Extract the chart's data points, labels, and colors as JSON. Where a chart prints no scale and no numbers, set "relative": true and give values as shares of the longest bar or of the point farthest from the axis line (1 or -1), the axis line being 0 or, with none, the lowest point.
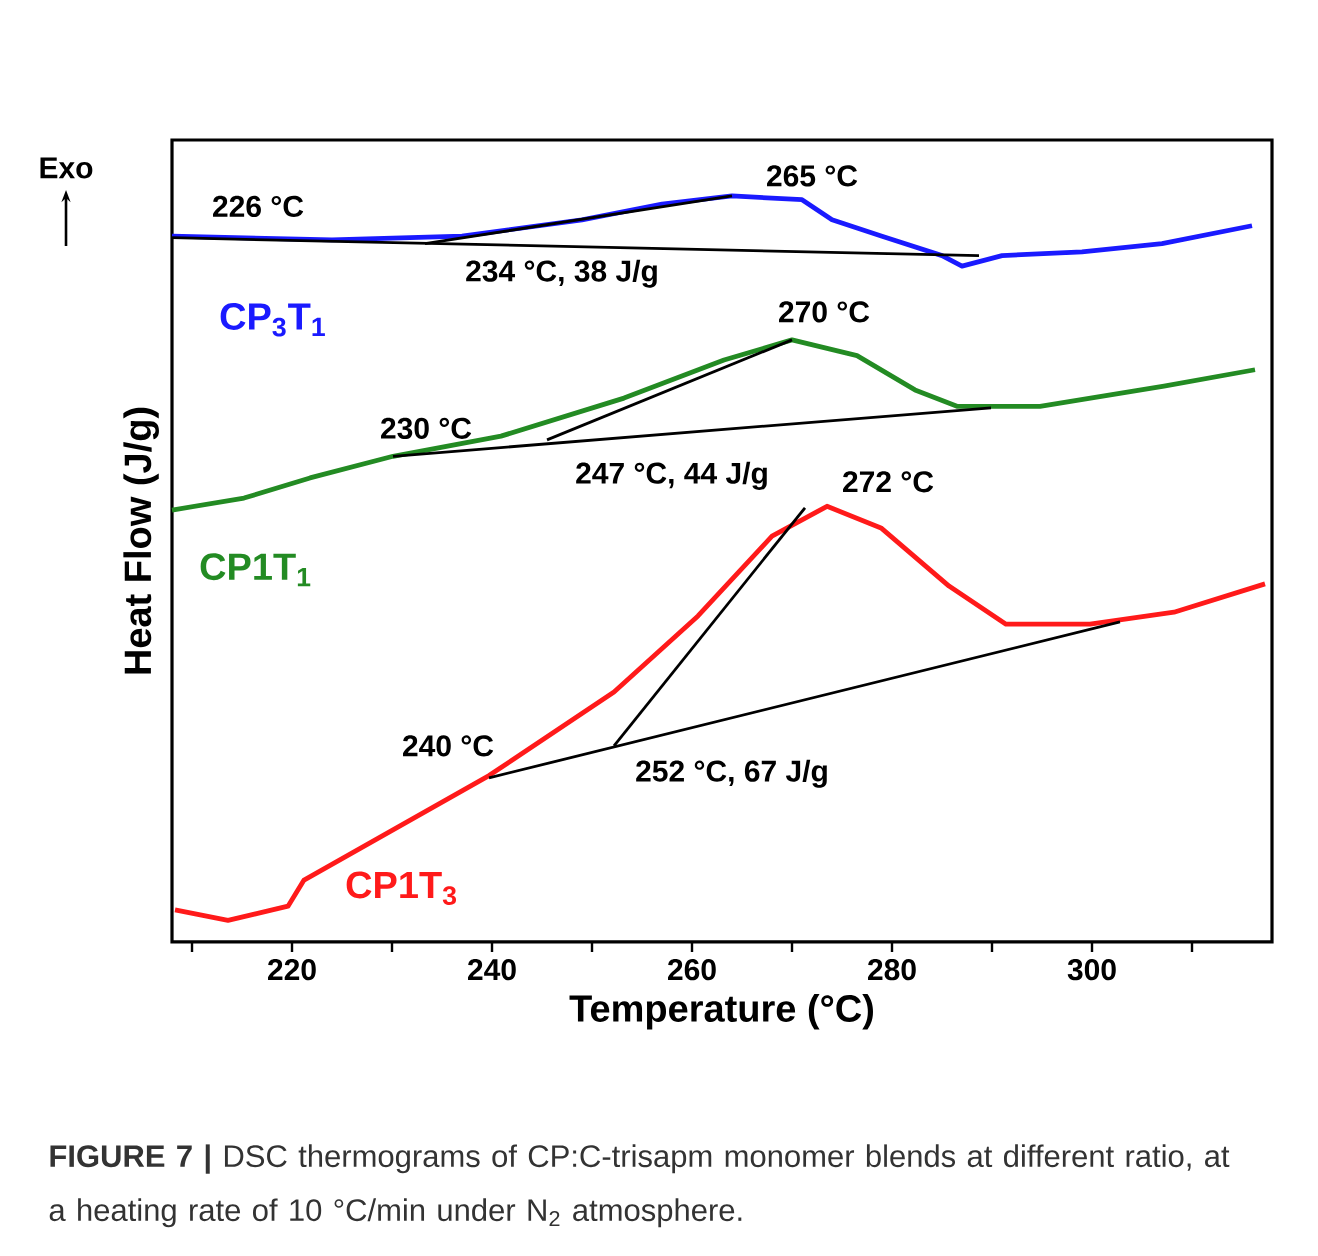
{
  "chart_data": {
    "type": "line",
    "relative": true,
    "xlabel": "Temperature (°C)",
    "ylabel": "Heat Flow (J/g)",
    "xlim": [
      208,
      318
    ],
    "xticks": [
      {
        "value": 210,
        "label": null
      },
      220,
      {
        "value": 230,
        "label": null
      },
      240,
      {
        "value": 250,
        "label": null
      },
      260,
      {
        "value": 270,
        "label": null
      },
      280,
      {
        "value": 290,
        "label": null
      },
      300,
      {
        "value": 310,
        "label": null
      }
    ],
    "series": [
      {
        "name": "CP$_{3}$T$_{1}$",
        "color": "#1a1aff",
        "x": [
          208,
          224,
          237,
          249,
          257,
          264,
          271,
          274,
          279,
          285,
          287,
          291,
          299,
          307,
          316
        ],
        "values": [
          0.946,
          0.941,
          0.946,
          0.968,
          0.989,
          1.0,
          0.995,
          0.968,
          0.946,
          0.92,
          0.906,
          0.92,
          0.925,
          0.936,
          0.96
        ]
      },
      {
        "name": "CP1T$_{1}$",
        "color": "#238b23",
        "x": [
          208,
          215.2,
          221.8,
          230.1,
          240.9,
          253.2,
          263.2,
          270,
          276.5,
          282.3,
          286.5,
          294.8,
          307.2,
          316.3
        ],
        "values": [
          0.579,
          0.595,
          0.622,
          0.651,
          0.678,
          0.729,
          0.78,
          0.807,
          0.786,
          0.74,
          0.718,
          0.718,
          0.745,
          0.767
        ]
      },
      {
        "name": "CP1T$_{3}$",
        "color": "#ff1a1a",
        "x": [
          208.3,
          213.6,
          219.6,
          221.2,
          239.7,
          252.2,
          260.6,
          268,
          273.5,
          278.9,
          285.7,
          291.4,
          299.8,
          308.2,
          317.3
        ],
        "values": [
          0.043,
          0.029,
          0.048,
          0.083,
          0.223,
          0.335,
          0.437,
          0.544,
          0.584,
          0.555,
          0.477,
          0.426,
          0.426,
          0.442,
          0.48
        ]
      },
      {
        "type": "line",
        "color": "#000000",
        "x": [
          208,
          288.7
        ],
        "values": [
          0.944,
          0.92
        ]
      },
      {
        "type": "line",
        "color": "#000000",
        "x": [
          233.3,
          264
        ],
        "values": [
          0.936,
          1.0
        ]
      },
      {
        "type": "line",
        "color": "#000000",
        "x": [
          230.1,
          289.9
        ],
        "values": [
          0.651,
          0.716
        ]
      },
      {
        "type": "line",
        "color": "#000000",
        "x": [
          245.5,
          270
        ],
        "values": [
          0.673,
          0.807
        ]
      },
      {
        "type": "line",
        "color": "#000000",
        "x": [
          239.7,
          302.8
        ],
        "values": [
          0.22,
          0.429
        ]
      },
      {
        "type": "line",
        "color": "#000000",
        "x": [
          252.2,
          271.3
        ],
        "values": [
          0.263,
          0.582
        ]
      }
    ],
    "annotations": [
      {
        "text": "226 °C",
        "x": 226,
        "y": 0.943
      },
      {
        "text": "265 °C",
        "x": 265,
        "y": 1.0
      },
      {
        "text": "234 °C, 38 J/g",
        "x": 234,
        "y": 0.936
      },
      {
        "text": "270 °C",
        "x": 270,
        "y": 0.807
      },
      {
        "text": "230 °C",
        "x": 230,
        "y": 0.651
      },
      {
        "text": "247 °C, 44 J/g",
        "x": 247,
        "y": 0.673
      },
      {
        "text": "272 °C",
        "x": 272,
        "y": 0.582
      },
      {
        "text": "240 °C",
        "x": 240,
        "y": 0.22
      },
      {
        "text": "252 °C, 67 J/g",
        "x": 252,
        "y": 0.263
      },
      "Exo",
      "**FIGURE 7 |** DSC thermograms of CP:C-trisapm monomer blends at different ratio, at a heating rate of 10 °C/min under N$_{2}$ atmosphere."
    ]
  }
}
